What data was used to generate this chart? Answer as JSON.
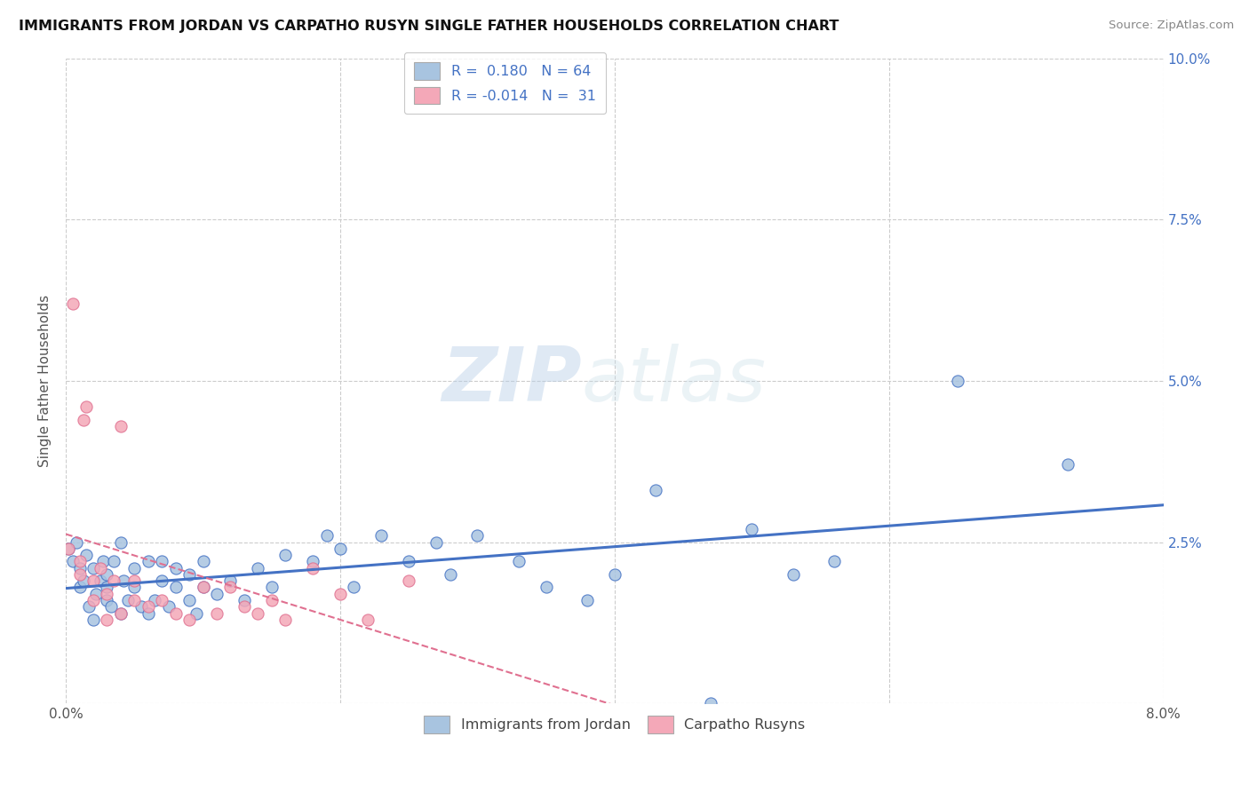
{
  "title": "IMMIGRANTS FROM JORDAN VS CARPATHO RUSYN SINGLE FATHER HOUSEHOLDS CORRELATION CHART",
  "source": "Source: ZipAtlas.com",
  "ylabel_text": "Single Father Households",
  "xmin": 0.0,
  "xmax": 0.08,
  "ymin": 0.0,
  "ymax": 0.1,
  "yticks": [
    0.0,
    0.025,
    0.05,
    0.075,
    0.1
  ],
  "ytick_labels_right": [
    "",
    "2.5%",
    "5.0%",
    "7.5%",
    "10.0%"
  ],
  "xticks": [
    0.0,
    0.02,
    0.04,
    0.06,
    0.08
  ],
  "xtick_labels": [
    "0.0%",
    "",
    "",
    "",
    "8.0%"
  ],
  "legend_r1": "R =  0.180",
  "legend_n1": "N = 64",
  "legend_r2": "R = -0.014",
  "legend_n2": "N =  31",
  "color_jordan": "#a8c4e0",
  "color_rusyn": "#f4a8b8",
  "line_color_jordan": "#4472c4",
  "line_color_rusyn": "#e07090",
  "background_color": "#ffffff",
  "grid_color": "#cccccc",
  "watermark_zip": "ZIP",
  "watermark_atlas": "atlas",
  "jordan_x": [
    0.0002,
    0.0005,
    0.0008,
    0.001,
    0.001,
    0.0013,
    0.0015,
    0.0017,
    0.002,
    0.002,
    0.0022,
    0.0025,
    0.0027,
    0.003,
    0.003,
    0.003,
    0.0033,
    0.0035,
    0.004,
    0.004,
    0.0042,
    0.0045,
    0.005,
    0.005,
    0.0055,
    0.006,
    0.006,
    0.0065,
    0.007,
    0.007,
    0.0075,
    0.008,
    0.008,
    0.009,
    0.009,
    0.0095,
    0.01,
    0.01,
    0.011,
    0.012,
    0.013,
    0.014,
    0.015,
    0.016,
    0.018,
    0.019,
    0.02,
    0.021,
    0.023,
    0.025,
    0.027,
    0.028,
    0.03,
    0.033,
    0.035,
    0.038,
    0.04,
    0.043,
    0.047,
    0.05,
    0.053,
    0.056,
    0.065,
    0.073
  ],
  "jordan_y": [
    0.024,
    0.022,
    0.025,
    0.018,
    0.021,
    0.019,
    0.023,
    0.015,
    0.021,
    0.013,
    0.017,
    0.019,
    0.022,
    0.016,
    0.018,
    0.02,
    0.015,
    0.022,
    0.014,
    0.025,
    0.019,
    0.016,
    0.021,
    0.018,
    0.015,
    0.022,
    0.014,
    0.016,
    0.019,
    0.022,
    0.015,
    0.018,
    0.021,
    0.016,
    0.02,
    0.014,
    0.018,
    0.022,
    0.017,
    0.019,
    0.016,
    0.021,
    0.018,
    0.023,
    0.022,
    0.026,
    0.024,
    0.018,
    0.026,
    0.022,
    0.025,
    0.02,
    0.026,
    0.022,
    0.018,
    0.016,
    0.02,
    0.033,
    0.0,
    0.027,
    0.02,
    0.022,
    0.05,
    0.037
  ],
  "rusyn_x": [
    0.0002,
    0.0005,
    0.001,
    0.001,
    0.0013,
    0.0015,
    0.002,
    0.002,
    0.0025,
    0.003,
    0.003,
    0.0035,
    0.004,
    0.004,
    0.005,
    0.005,
    0.006,
    0.007,
    0.008,
    0.009,
    0.01,
    0.011,
    0.012,
    0.013,
    0.014,
    0.015,
    0.016,
    0.018,
    0.02,
    0.022,
    0.025
  ],
  "rusyn_y": [
    0.024,
    0.062,
    0.02,
    0.022,
    0.044,
    0.046,
    0.016,
    0.019,
    0.021,
    0.013,
    0.017,
    0.019,
    0.014,
    0.043,
    0.016,
    0.019,
    0.015,
    0.016,
    0.014,
    0.013,
    0.018,
    0.014,
    0.018,
    0.015,
    0.014,
    0.016,
    0.013,
    0.021,
    0.017,
    0.013,
    0.019
  ]
}
